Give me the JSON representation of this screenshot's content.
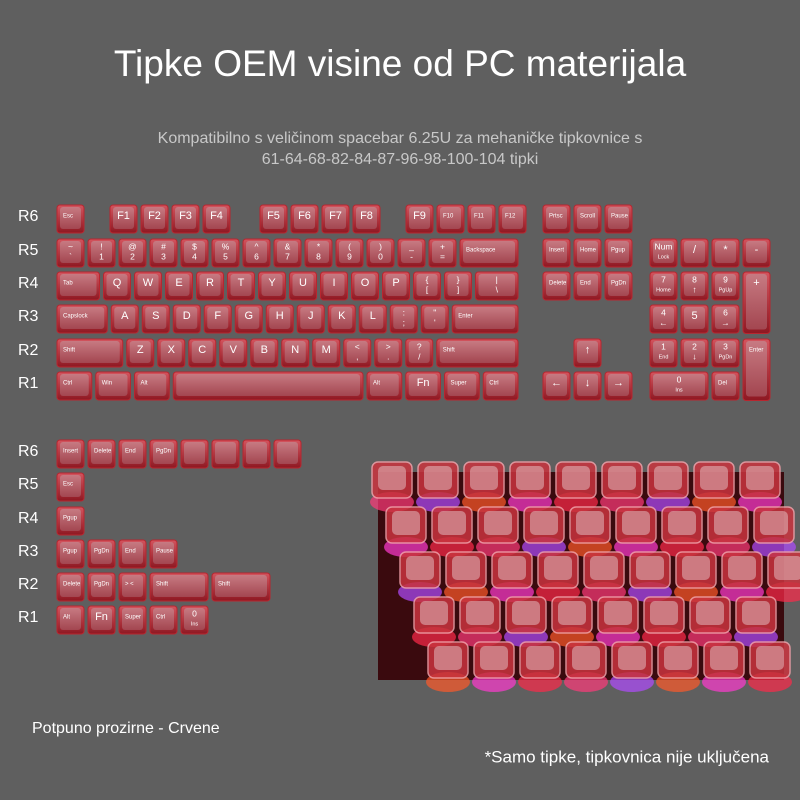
{
  "header": {
    "title": "Tipke OEM visine od PC materijala",
    "subtitle": [
      "Kompatibilno s veličinom spacebar 6.25U za mehaničke tipkovnice s",
      "61-64-68-82-84-87-96-98-100-104 tipki"
    ]
  },
  "main": {
    "row_labels": [
      "R6",
      "R5",
      "R4",
      "R3",
      "R2",
      "R1"
    ],
    "rows": [
      [
        "Esc",
        "F1",
        "F2",
        "F3",
        "F4",
        "F5",
        "F6",
        "F7",
        "F8",
        "F9",
        "F10",
        "F11",
        "F12",
        "Prtsc",
        "Scroll",
        "Pause"
      ],
      [
        [
          "~",
          "`"
        ],
        [
          "!",
          "1"
        ],
        [
          "@",
          "2"
        ],
        [
          "#",
          "3"
        ],
        [
          "$",
          "4"
        ],
        [
          "%",
          "5"
        ],
        [
          "^",
          "6"
        ],
        [
          "&",
          "7"
        ],
        [
          "*",
          "8"
        ],
        [
          "(",
          "9"
        ],
        [
          ")",
          "0"
        ],
        [
          "_",
          "-"
        ],
        [
          "+",
          "="
        ],
        "Backspace",
        "Insert",
        "Home",
        "Pgup",
        [
          "Num",
          "Lock"
        ],
        "/",
        "*",
        "-"
      ],
      [
        "Tab",
        "Q",
        "W",
        "E",
        "R",
        "T",
        "Y",
        "U",
        "I",
        "O",
        "P",
        [
          "{",
          "["
        ],
        [
          "}",
          "]"
        ],
        [
          "|",
          "\\"
        ],
        "Delete",
        "End",
        "PgDn",
        [
          "7",
          "Home"
        ],
        [
          "8",
          "↑"
        ],
        [
          "9",
          "PgUp"
        ],
        "+"
      ],
      [
        "Capslock",
        "A",
        "S",
        "D",
        "F",
        "G",
        "H",
        "J",
        "K",
        "L",
        [
          ":",
          ";"
        ],
        [
          "\"",
          "'"
        ],
        "Enter",
        [
          "4",
          "←"
        ],
        "5",
        [
          "6",
          "→"
        ]
      ],
      [
        "Shift",
        "Z",
        "X",
        "C",
        "V",
        "B",
        "N",
        "M",
        [
          "<",
          ","
        ],
        [
          ">",
          "."
        ],
        [
          "?",
          "/"
        ],
        "Shift",
        "↑",
        [
          "1",
          "End"
        ],
        [
          "2",
          "↓"
        ],
        [
          "3",
          "PgDn"
        ],
        "Enter"
      ],
      [
        "Ctrl",
        "Win",
        "Alt",
        null,
        "Alt",
        "Fn",
        "Super",
        "Ctrl",
        "←",
        "↓",
        "→",
        [
          "0",
          "Ins"
        ],
        "Del"
      ]
    ]
  },
  "extras": {
    "row_labels": [
      "R6",
      "R5",
      "R4",
      "R3",
      "R2",
      "R1"
    ],
    "rows": [
      [
        "Insert",
        "Delete",
        "End",
        "PgDn",
        null,
        null,
        null,
        null
      ],
      [
        "Esc"
      ],
      [
        "Pgup"
      ],
      [
        "Pgup",
        "PgDn",
        "End",
        "Pause"
      ],
      [
        "Delete",
        "PgDn",
        "> <",
        "Shift",
        "Shift"
      ],
      [
        "Alt",
        "Fn",
        "Super",
        "Ctrl",
        [
          "0",
          "Ins"
        ]
      ]
    ]
  },
  "footer": {
    "color_name": "Potpuno prozirne - Crvene",
    "note": "*Samo tipke, tipkovnica nije uključena"
  }
}
